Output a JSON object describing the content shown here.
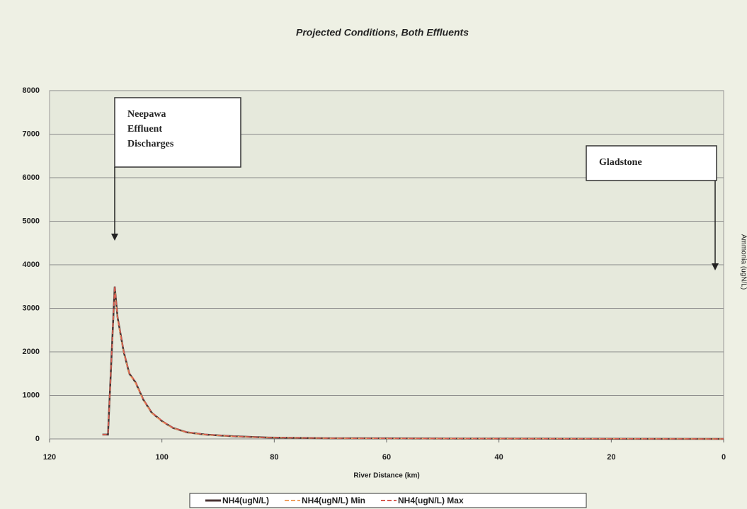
{
  "chart_data": {
    "type": "line",
    "title": "Projected Conditions, Both Effluents",
    "x_label": "River Distance (km)",
    "y2_label": "Ammonia (ugN/L)",
    "x": [
      110.6,
      109.6,
      108.4,
      107.9,
      106.8,
      105.8,
      104.7,
      103.3,
      101.8,
      99.9,
      98,
      95.5,
      92.3,
      87.3,
      81,
      69.7,
      53.3,
      28,
      0
    ],
    "series": [
      {
        "name": "NH4(ugN/L)",
        "color": "#4a3434",
        "dash": false,
        "values": [
          100,
          100,
          3500,
          2800,
          2000,
          1500,
          1300,
          900,
          600,
          400,
          250,
          150,
          100,
          60,
          30,
          15,
          10,
          5,
          0
        ]
      },
      {
        "name": "NH4(ugN/L) Min",
        "color": "#f0a060",
        "dash": true,
        "values": [
          100,
          100,
          3450,
          2750,
          1980,
          1480,
          1280,
          880,
          590,
          390,
          245,
          145,
          95,
          58,
          28,
          14,
          9,
          5,
          0
        ]
      },
      {
        "name": "NH4(ugN/L) Max",
        "color": "#d85a50",
        "dash": true,
        "values": [
          100,
          100,
          3520,
          2820,
          2020,
          1520,
          1320,
          910,
          610,
          410,
          255,
          155,
          105,
          62,
          32,
          16,
          11,
          6,
          0
        ]
      }
    ],
    "xlim": [
      120,
      0
    ],
    "xticks": [
      120,
      100,
      80,
      60,
      40,
      20,
      0
    ],
    "ylim": [
      0,
      8000
    ],
    "yticks": [
      0,
      1000,
      2000,
      3000,
      4000,
      5000,
      6000,
      7000,
      8000
    ],
    "grid": true,
    "annotations": [
      {
        "lines": [
          "Neepawa",
          "Effluent",
          "Discharges"
        ]
      },
      {
        "lines": [
          "Gladstone"
        ]
      }
    ]
  }
}
